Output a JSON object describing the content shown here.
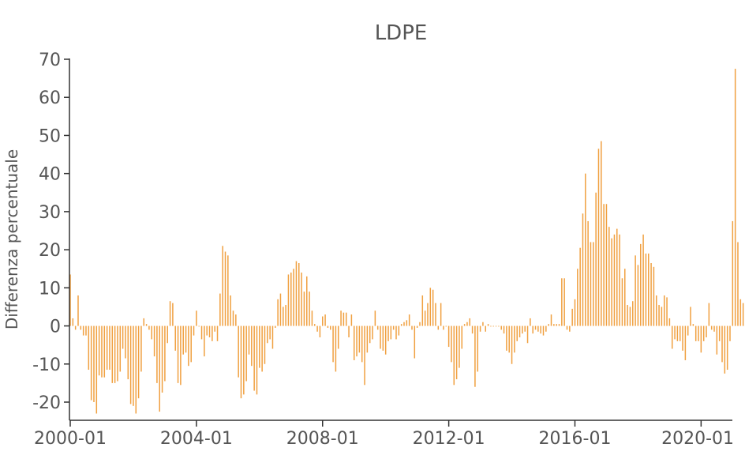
{
  "chart_data": {
    "type": "bar",
    "title": "LDPE",
    "xlabel": "",
    "ylabel": "Differenza percentuale",
    "ylim": [
      -25,
      70
    ],
    "yticks": [
      70,
      60,
      50,
      40,
      30,
      20,
      10,
      0,
      -10,
      -20
    ],
    "ytick_labels": [
      "70",
      "60",
      "50",
      "40",
      "30",
      "20",
      "10",
      "0",
      "-10",
      "-20"
    ],
    "xticks": [
      "2000-01",
      "2004-01",
      "2008-01",
      "2012-01",
      "2016-01",
      "2020-01"
    ],
    "grid": false,
    "legend": "none",
    "bar_color": "#f0a040",
    "x_start": "2000-01",
    "x_end": "2020-12",
    "series": [
      {
        "values": [
          13.5,
          2.0,
          -1.0,
          8.0,
          -1.0,
          -2.5,
          -2.5,
          -11.5,
          -19.5,
          -20.0,
          -23.0,
          -13.0,
          -13.5,
          -13.5,
          -11.5,
          -11.5,
          -15.0,
          -15.0,
          -14.5,
          -12.0,
          -6.0,
          -8.5,
          -14.0,
          -20.5,
          -21.0,
          -23.0,
          -19.0,
          -12.0,
          2.0,
          0.5,
          -1.0,
          -3.5,
          -8.0,
          -15.0,
          -22.5,
          -17.5,
          -14.5,
          -4.5,
          6.5,
          6.0,
          -6.5,
          -15.0,
          -15.5,
          -7.5,
          -7.0,
          -10.5,
          -9.5,
          -2.5,
          4.0,
          0.0,
          -3.5,
          -8.0,
          -2.5,
          -3.0,
          -4.0,
          -1.5,
          -4.0,
          8.5,
          21.0,
          19.5,
          18.5,
          8.0,
          4.0,
          3.0,
          -13.5,
          -19.0,
          -18.0,
          -14.5,
          -7.5,
          -10.5,
          -17.0,
          -18.0,
          -11.0,
          -12.0,
          -10.0,
          -4.5,
          -3.5,
          -6.0,
          -0.5,
          7.0,
          8.5,
          5.0,
          5.5,
          13.5,
          14.0,
          15.0,
          17.0,
          16.5,
          14.0,
          9.0,
          13.0,
          9.0,
          4.0,
          0.5,
          -1.5,
          -3.0,
          2.5,
          3.0,
          -0.5,
          -1.0,
          -9.5,
          -12.0,
          -6.0,
          4.0,
          3.5,
          3.5,
          -3.0,
          3.0,
          -9.0,
          -8.0,
          -7.0,
          -9.5,
          -15.5,
          -7.0,
          -4.5,
          -3.5,
          4.0,
          -1.0,
          -6.0,
          -6.5,
          -7.5,
          -4.0,
          -3.5,
          -1.0,
          -3.5,
          -2.5,
          0.5,
          1.0,
          1.5,
          3.0,
          -1.0,
          -8.5,
          -0.5,
          1.0,
          8.0,
          4.0,
          6.0,
          10.0,
          9.5,
          6.0,
          -1.0,
          6.0,
          -1.0,
          0.0,
          -5.5,
          -9.5,
          -15.5,
          -14.0,
          -11.0,
          -6.0,
          0.5,
          1.0,
          2.0,
          -2.0,
          -16.0,
          -12.0,
          -1.5,
          1.0,
          -1.5,
          0.5,
          0.0,
          0.0,
          0.0,
          0.0,
          -1.0,
          -2.0,
          -6.5,
          -7.0,
          -10.0,
          -7.0,
          -4.0,
          -3.0,
          -2.0,
          -1.5,
          -4.5,
          2.0,
          -2.0,
          -1.0,
          -1.5,
          -2.0,
          -2.5,
          -1.5,
          0.5,
          3.0,
          0.5,
          0.5,
          0.5,
          12.5,
          12.5,
          -1.0,
          -1.5,
          4.5,
          7.0,
          15.0,
          20.5,
          29.5,
          40.0,
          27.5,
          22.0,
          22.0,
          35.0,
          46.5,
          48.5,
          32.0,
          32.0,
          26.0,
          23.0,
          24.0,
          25.5,
          24.0,
          12.5,
          15.0,
          5.5,
          5.0,
          6.5,
          18.5,
          16.0,
          21.5,
          24.0,
          19.0,
          19.0,
          16.5,
          15.5,
          8.0,
          5.5,
          5.0,
          8.0,
          7.5,
          2.0,
          -6.0,
          -3.5,
          -4.0,
          -4.0,
          -6.5,
          -9.0,
          -2.5,
          5.0,
          0.5,
          -4.0,
          -4.0,
          -7.0,
          -4.0,
          -3.0,
          6.0,
          -1.0,
          -1.5,
          -7.5,
          -4.0,
          -9.5,
          -12.5,
          -11.5,
          -4.0,
          27.5,
          67.5,
          22.0,
          7.0,
          6.0,
          9.5,
          13.5,
          14.5,
          17.5
        ]
      }
    ]
  }
}
